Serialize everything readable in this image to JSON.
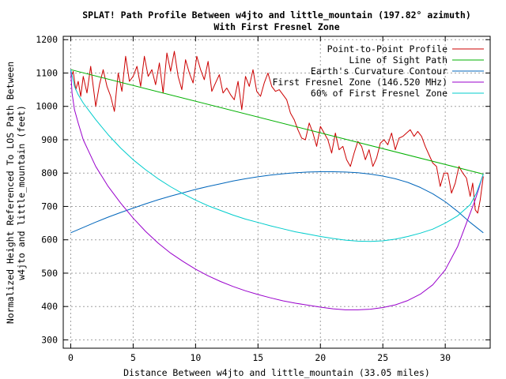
{
  "chart_data": {
    "type": "line",
    "title": "SPLAT! Path Profile Between w4jto and little_mountain (197.82° azimuth)",
    "subtitle": "With First Fresnel Zone",
    "xlabel": "Distance Between w4jto and little_mountain (33.05 miles)",
    "ylabel_line1": "Normalized Height Referenced To LOS Path Between",
    "ylabel_line2": "w4jto and little_mountain (feet)",
    "xlim": [
      -0.6,
      33.6
    ],
    "ylim": [
      275,
      1210
    ],
    "xticks": [
      0,
      5,
      10,
      15,
      20,
      25,
      30
    ],
    "yticks": [
      300,
      400,
      500,
      600,
      700,
      800,
      900,
      1000,
      1100,
      1200
    ],
    "grid": true,
    "legend_position": "top-right",
    "series": [
      {
        "name": "Point-to-Point Profile",
        "color": "#cc0000",
        "x": [
          0,
          0.2,
          0.4,
          0.6,
          0.8,
          1,
          1.3,
          1.6,
          2,
          2.3,
          2.6,
          2.9,
          3.2,
          3.5,
          3.8,
          4.1,
          4.4,
          4.7,
          5,
          5.3,
          5.6,
          5.9,
          6.2,
          6.5,
          6.8,
          7.1,
          7.4,
          7.7,
          8,
          8.3,
          8.6,
          8.9,
          9.2,
          9.5,
          9.8,
          10.1,
          10.4,
          10.7,
          11,
          11.3,
          11.6,
          11.9,
          12.2,
          12.5,
          12.8,
          13.1,
          13.4,
          13.7,
          14,
          14.3,
          14.6,
          14.9,
          15.2,
          15.5,
          15.8,
          16.1,
          16.4,
          16.7,
          17,
          17.3,
          17.6,
          17.9,
          18.2,
          18.5,
          18.8,
          19.1,
          19.4,
          19.7,
          20,
          20.3,
          20.6,
          20.9,
          21.2,
          21.5,
          21.8,
          22.1,
          22.4,
          22.7,
          23,
          23.3,
          23.6,
          23.9,
          24.2,
          24.5,
          24.8,
          25.1,
          25.4,
          25.7,
          26,
          26.3,
          26.6,
          26.9,
          27.2,
          27.5,
          27.8,
          28.1,
          28.4,
          28.7,
          29,
          29.3,
          29.6,
          29.9,
          30.2,
          30.5,
          30.8,
          31.1,
          31.4,
          31.7,
          32,
          32.2,
          32.4,
          32.6,
          32.8,
          33.05
        ],
        "y": [
          1085,
          1105,
          1050,
          1075,
          1030,
          1090,
          1040,
          1120,
          1000,
          1065,
          1110,
          1060,
          1030,
          985,
          1100,
          1045,
          1150,
          1075,
          1090,
          1120,
          1060,
          1150,
          1090,
          1110,
          1065,
          1130,
          1040,
          1160,
          1105,
          1165,
          1090,
          1050,
          1140,
          1100,
          1070,
          1150,
          1110,
          1080,
          1135,
          1045,
          1070,
          1095,
          1040,
          1055,
          1035,
          1020,
          1075,
          990,
          1090,
          1060,
          1110,
          1045,
          1030,
          1070,
          1100,
          1060,
          1045,
          1050,
          1035,
          1020,
          980,
          960,
          930,
          905,
          900,
          950,
          920,
          880,
          940,
          920,
          900,
          860,
          920,
          870,
          880,
          840,
          820,
          860,
          895,
          880,
          840,
          870,
          820,
          845,
          890,
          900,
          885,
          920,
          870,
          905,
          910,
          920,
          930,
          910,
          925,
          910,
          880,
          855,
          830,
          820,
          760,
          800,
          800,
          740,
          770,
          820,
          800,
          785,
          730,
          770,
          690,
          680,
          720,
          790
        ],
        "stroke_width": 1
      },
      {
        "name": "Line of Sight Path",
        "color": "#00b000",
        "x": [
          0,
          33.05
        ],
        "y": [
          1110,
          797
        ],
        "stroke_width": 1
      },
      {
        "name": "Earth's Curvature Contour",
        "color": "#0066bb",
        "x": [
          0,
          1,
          2,
          3,
          4,
          5,
          6,
          7,
          8,
          9,
          10,
          11,
          12,
          13,
          14,
          15,
          16,
          17,
          18,
          19,
          20,
          21,
          22,
          23,
          24,
          25,
          26,
          27,
          28,
          29,
          30,
          31,
          32,
          33.05
        ],
        "y": [
          621,
          637,
          653,
          668,
          682,
          695,
          708,
          720,
          731,
          741,
          751,
          760,
          768,
          776,
          783,
          789,
          794,
          798,
          801,
          803,
          804,
          804,
          803,
          801,
          797,
          791,
          783,
          772,
          757,
          738,
          714,
          685,
          652,
          621
        ],
        "stroke_width": 1
      },
      {
        "name": "First Fresnel Zone (146.520 MHz)",
        "color": "#9900cc",
        "x": [
          0,
          0.1,
          0.3,
          0.6,
          1,
          1.5,
          2,
          3,
          4,
          5,
          6,
          7,
          8,
          9,
          10,
          11,
          12,
          13,
          14,
          15,
          16,
          17,
          18,
          19,
          20,
          21,
          22,
          23,
          24,
          25,
          26,
          27,
          28,
          29,
          30,
          31,
          32,
          32.4,
          32.7,
          32.9,
          33.05
        ],
        "y": [
          1110,
          1040,
          990,
          950,
          900,
          860,
          820,
          760,
          710,
          665,
          625,
          590,
          560,
          535,
          512,
          492,
          475,
          460,
          447,
          436,
          426,
          417,
          410,
          404,
          398,
          393,
          390,
          390,
          392,
          397,
          405,
          418,
          437,
          465,
          510,
          580,
          680,
          720,
          755,
          780,
          797
        ],
        "stroke_width": 1
      },
      {
        "name": "60% of First Fresnel Zone",
        "color": "#00cccc",
        "x": [
          0,
          0.3,
          0.6,
          1,
          1.5,
          2,
          3,
          4,
          5,
          6,
          7,
          8,
          9,
          10,
          11,
          12,
          13,
          14,
          15,
          16,
          17,
          18,
          19,
          20,
          21,
          22,
          23,
          24,
          25,
          26,
          27,
          28,
          29,
          30,
          31,
          32,
          32.5,
          33.05
        ],
        "y": [
          1110,
          1060,
          1035,
          1010,
          985,
          960,
          915,
          875,
          840,
          810,
          783,
          759,
          738,
          719,
          702,
          688,
          674,
          662,
          652,
          642,
          633,
          624,
          617,
          610,
          604,
          599,
          596,
          595,
          597,
          602,
          610,
          620,
          632,
          650,
          672,
          705,
          740,
          797
        ],
        "stroke_width": 1
      }
    ]
  }
}
